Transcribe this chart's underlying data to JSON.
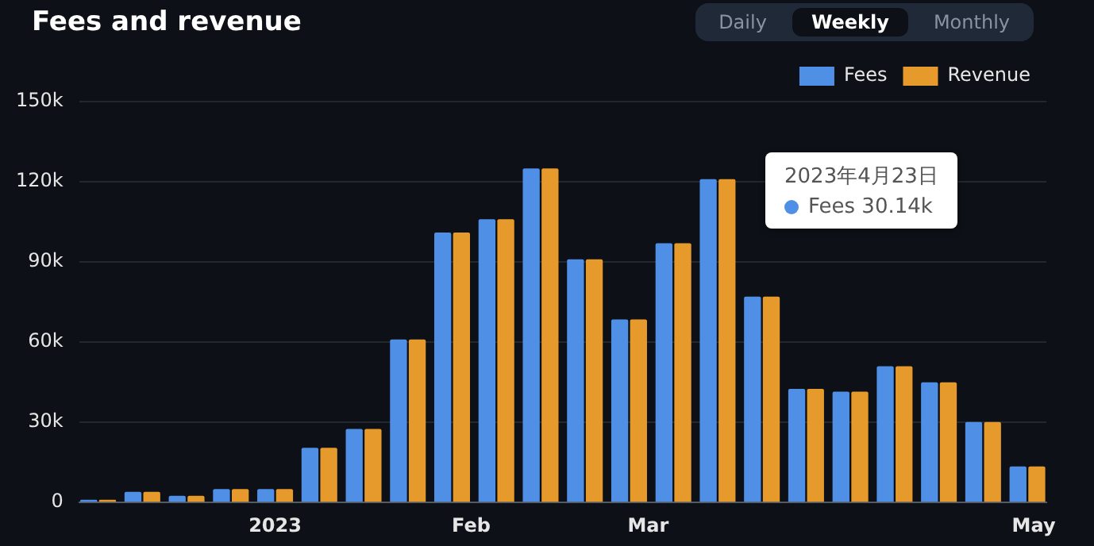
{
  "chart_data": {
    "type": "bar",
    "title": "Fees and revenue",
    "annotations": [
      "Daily",
      "Weekly",
      "Monthly",
      "2023年4月23日",
      "Fees 30.14k"
    ],
    "x": [
      "2022-12-04",
      "2022-12-11",
      "2022-12-18",
      "2022-12-25",
      "2023-01-01",
      "2023-01-08",
      "2023-01-15",
      "2023-01-22",
      "2023-01-29",
      "2023-02-05",
      "2023-02-12",
      "2023-02-19",
      "2023-02-26",
      "2023-03-05",
      "2023-03-12",
      "2023-03-19",
      "2023-03-26",
      "2023-04-02",
      "2023-04-09",
      "2023-04-16",
      "2023-04-23",
      "2023-04-30"
    ],
    "series": [
      {
        "name": "Fees",
        "color": "#4f8fe6",
        "values": [
          1000,
          4000,
          2500,
          5000,
          5000,
          20500,
          27500,
          61000,
          101000,
          106000,
          125000,
          91000,
          68500,
          97000,
          121000,
          77000,
          42500,
          41500,
          51000,
          45000,
          30140,
          13500
        ]
      },
      {
        "name": "Revenue",
        "color": "#e69a2b",
        "values": [
          1000,
          4000,
          2500,
          5000,
          5000,
          20500,
          27500,
          61000,
          101000,
          106000,
          125000,
          91000,
          68500,
          97000,
          121000,
          77000,
          42500,
          41500,
          51000,
          45000,
          30140,
          13500
        ]
      }
    ],
    "xlim": [
      "2022-12-01",
      "2023-05-03"
    ],
    "xticks": [
      {
        "value": "2023-01-01",
        "label": "2023"
      },
      {
        "value": "2023-02-01",
        "label": "Feb"
      },
      {
        "value": "2023-03-01",
        "label": "Mar"
      },
      {
        "value": "2023-05-01",
        "label": "May"
      }
    ],
    "ylim": [
      0,
      150000
    ],
    "yticks": [
      {
        "value": 0,
        "label": "0"
      },
      {
        "value": 30000,
        "label": "30k"
      },
      {
        "value": 60000,
        "label": "60k"
      },
      {
        "value": 90000,
        "label": "90k"
      },
      {
        "value": 120000,
        "label": "120k"
      },
      {
        "value": 150000,
        "label": "150k"
      }
    ],
    "grid": "y",
    "legend": "top right"
  }
}
